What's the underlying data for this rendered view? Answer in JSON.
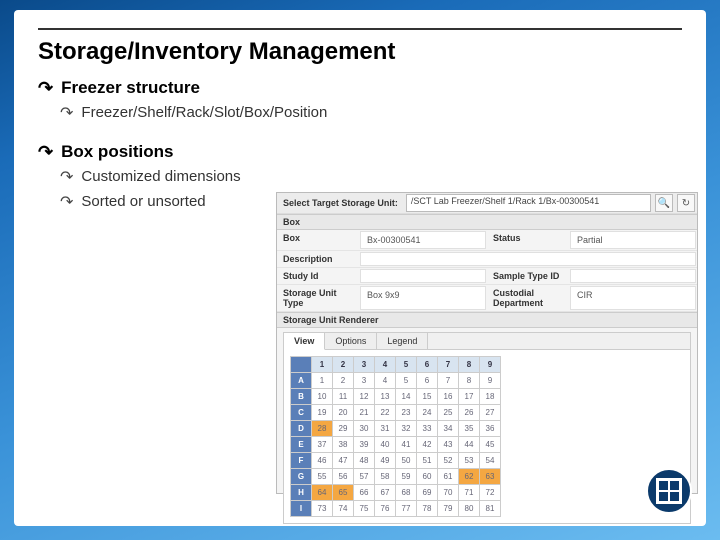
{
  "title": "Storage/Inventory Management",
  "bullets": {
    "b1": "Freezer structure",
    "b1a": "Freezer/Shelf/Rack/Slot/Box/Position",
    "b2": "Box positions",
    "b2a": "Customized dimensions",
    "b2b": "Sorted or unsorted"
  },
  "panel": {
    "select_label": "Select Target Storage Unit:",
    "path": "/SCT Lab Freezer/Shelf 1/Rack 1/Bx-00300541",
    "section_box": "Box",
    "fields": {
      "box_k": "Box",
      "box_v": "Bx-00300541",
      "status_k": "Status",
      "status_v": "Partial",
      "desc_k": "Description",
      "desc_v": "",
      "study_k": "Study Id",
      "study_v": "",
      "sample_k": "Sample Type ID",
      "sample_v": "",
      "unit_k": "Storage Unit Type",
      "unit_v": "Box 9x9",
      "cust_k": "Custodial Department",
      "cust_v": "CIR"
    },
    "renderer_hdr": "Storage Unit Renderer",
    "tabs": {
      "t1": "View",
      "t2": "Options",
      "t3": "Legend"
    },
    "grid": {
      "cols": [
        "1",
        "2",
        "3",
        "4",
        "5",
        "6",
        "7",
        "8",
        "9"
      ],
      "rows": [
        {
          "h": "A",
          "cells": [
            "1",
            "2",
            "3",
            "4",
            "5",
            "6",
            "7",
            "8",
            "9"
          ]
        },
        {
          "h": "B",
          "cells": [
            "10",
            "11",
            "12",
            "13",
            "14",
            "15",
            "16",
            "17",
            "18"
          ]
        },
        {
          "h": "C",
          "cells": [
            "19",
            "20",
            "21",
            "22",
            "23",
            "24",
            "25",
            "26",
            "27"
          ]
        },
        {
          "h": "D",
          "cells": [
            "28",
            "29",
            "30",
            "31",
            "32",
            "33",
            "34",
            "35",
            "36"
          ]
        },
        {
          "h": "E",
          "cells": [
            "37",
            "38",
            "39",
            "40",
            "41",
            "42",
            "43",
            "44",
            "45"
          ]
        },
        {
          "h": "F",
          "cells": [
            "46",
            "47",
            "48",
            "49",
            "50",
            "51",
            "52",
            "53",
            "54"
          ]
        },
        {
          "h": "G",
          "cells": [
            "55",
            "56",
            "57",
            "58",
            "59",
            "60",
            "61",
            "62",
            "63"
          ]
        },
        {
          "h": "H",
          "cells": [
            "64",
            "65",
            "66",
            "67",
            "68",
            "69",
            "70",
            "71",
            "72"
          ]
        },
        {
          "h": "I",
          "cells": [
            "73",
            "74",
            "75",
            "76",
            "77",
            "78",
            "79",
            "80",
            "81"
          ]
        }
      ],
      "highlight_cells": [
        "D-1",
        "G-8",
        "G-9",
        "H-1",
        "H-2"
      ],
      "highlight_color": "#f4a742",
      "header_row_bg": "#d8e4f0",
      "header_col_bg": "#5a7fb8"
    }
  },
  "colors": {
    "slide_grad_from": "#0a4a8a",
    "slide_grad_to": "#6bbcf0",
    "content_bg": "#ffffff",
    "panel_bg": "#f4f4f4"
  }
}
